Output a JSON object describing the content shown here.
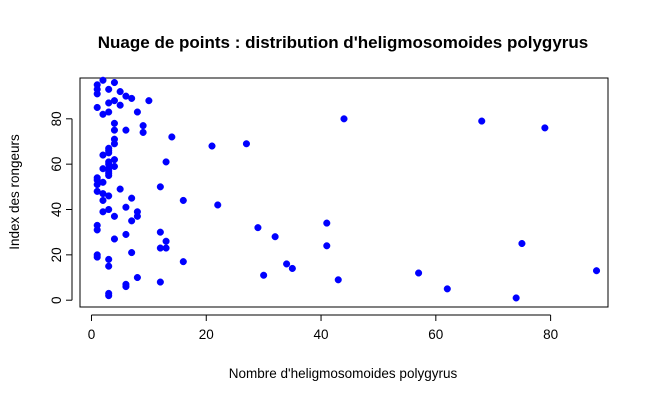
{
  "chart_data": {
    "type": "scatter",
    "title": "Nuage de points : distribution d'heligmosomoides polygyrus",
    "xlabel": "Nombre d'heligmosomoides polygyrus",
    "ylabel": "Index des rongeurs",
    "xlim": [
      -2,
      90
    ],
    "ylim": [
      -3,
      98
    ],
    "xticks": [
      0,
      20,
      40,
      60,
      80
    ],
    "yticks": [
      0,
      20,
      40,
      60,
      80
    ],
    "grid": false,
    "point_color": "#0000ff",
    "points": [
      [
        1,
        95
      ],
      [
        1,
        93
      ],
      [
        1,
        91
      ],
      [
        1,
        85
      ],
      [
        1,
        54
      ],
      [
        1,
        53
      ],
      [
        1,
        51
      ],
      [
        1,
        48
      ],
      [
        1,
        33
      ],
      [
        1,
        31
      ],
      [
        1,
        20
      ],
      [
        1,
        19
      ],
      [
        2,
        97
      ],
      [
        2,
        82
      ],
      [
        2,
        64
      ],
      [
        2,
        58
      ],
      [
        2,
        52
      ],
      [
        2,
        47
      ],
      [
        2,
        44
      ],
      [
        2,
        39
      ],
      [
        3,
        93
      ],
      [
        3,
        87
      ],
      [
        3,
        83
      ],
      [
        3,
        67
      ],
      [
        3,
        66
      ],
      [
        3,
        65
      ],
      [
        3,
        61
      ],
      [
        3,
        60
      ],
      [
        3,
        58
      ],
      [
        3,
        57
      ],
      [
        3,
        56
      ],
      [
        3,
        55
      ],
      [
        3,
        46
      ],
      [
        3,
        40
      ],
      [
        3,
        18
      ],
      [
        3,
        15
      ],
      [
        3,
        3
      ],
      [
        3,
        2
      ],
      [
        4,
        96
      ],
      [
        4,
        88
      ],
      [
        4,
        78
      ],
      [
        4,
        75
      ],
      [
        4,
        71
      ],
      [
        4,
        69
      ],
      [
        4,
        62
      ],
      [
        4,
        59
      ],
      [
        4,
        37
      ],
      [
        4,
        27
      ],
      [
        5,
        92
      ],
      [
        5,
        86
      ],
      [
        5,
        49
      ],
      [
        6,
        90
      ],
      [
        6,
        75
      ],
      [
        6,
        41
      ],
      [
        6,
        29
      ],
      [
        6,
        7
      ],
      [
        6,
        6
      ],
      [
        7,
        89
      ],
      [
        7,
        45
      ],
      [
        7,
        35
      ],
      [
        7,
        21
      ],
      [
        8,
        83
      ],
      [
        8,
        39
      ],
      [
        8,
        37
      ],
      [
        8,
        10
      ],
      [
        9,
        77
      ],
      [
        9,
        74
      ],
      [
        10,
        88
      ],
      [
        12,
        50
      ],
      [
        12,
        30
      ],
      [
        12,
        23
      ],
      [
        12,
        8
      ],
      [
        13,
        61
      ],
      [
        13,
        26
      ],
      [
        13,
        23
      ],
      [
        14,
        72
      ],
      [
        16,
        44
      ],
      [
        16,
        17
      ],
      [
        21,
        68
      ],
      [
        22,
        42
      ],
      [
        27,
        69
      ],
      [
        29,
        32
      ],
      [
        30,
        11
      ],
      [
        32,
        28
      ],
      [
        34,
        16
      ],
      [
        35,
        14
      ],
      [
        41,
        34
      ],
      [
        41,
        24
      ],
      [
        43,
        9
      ],
      [
        44,
        80
      ],
      [
        57,
        12
      ],
      [
        62,
        5
      ],
      [
        68,
        79
      ],
      [
        74,
        1
      ],
      [
        75,
        25
      ],
      [
        79,
        76
      ],
      [
        88,
        13
      ]
    ]
  }
}
